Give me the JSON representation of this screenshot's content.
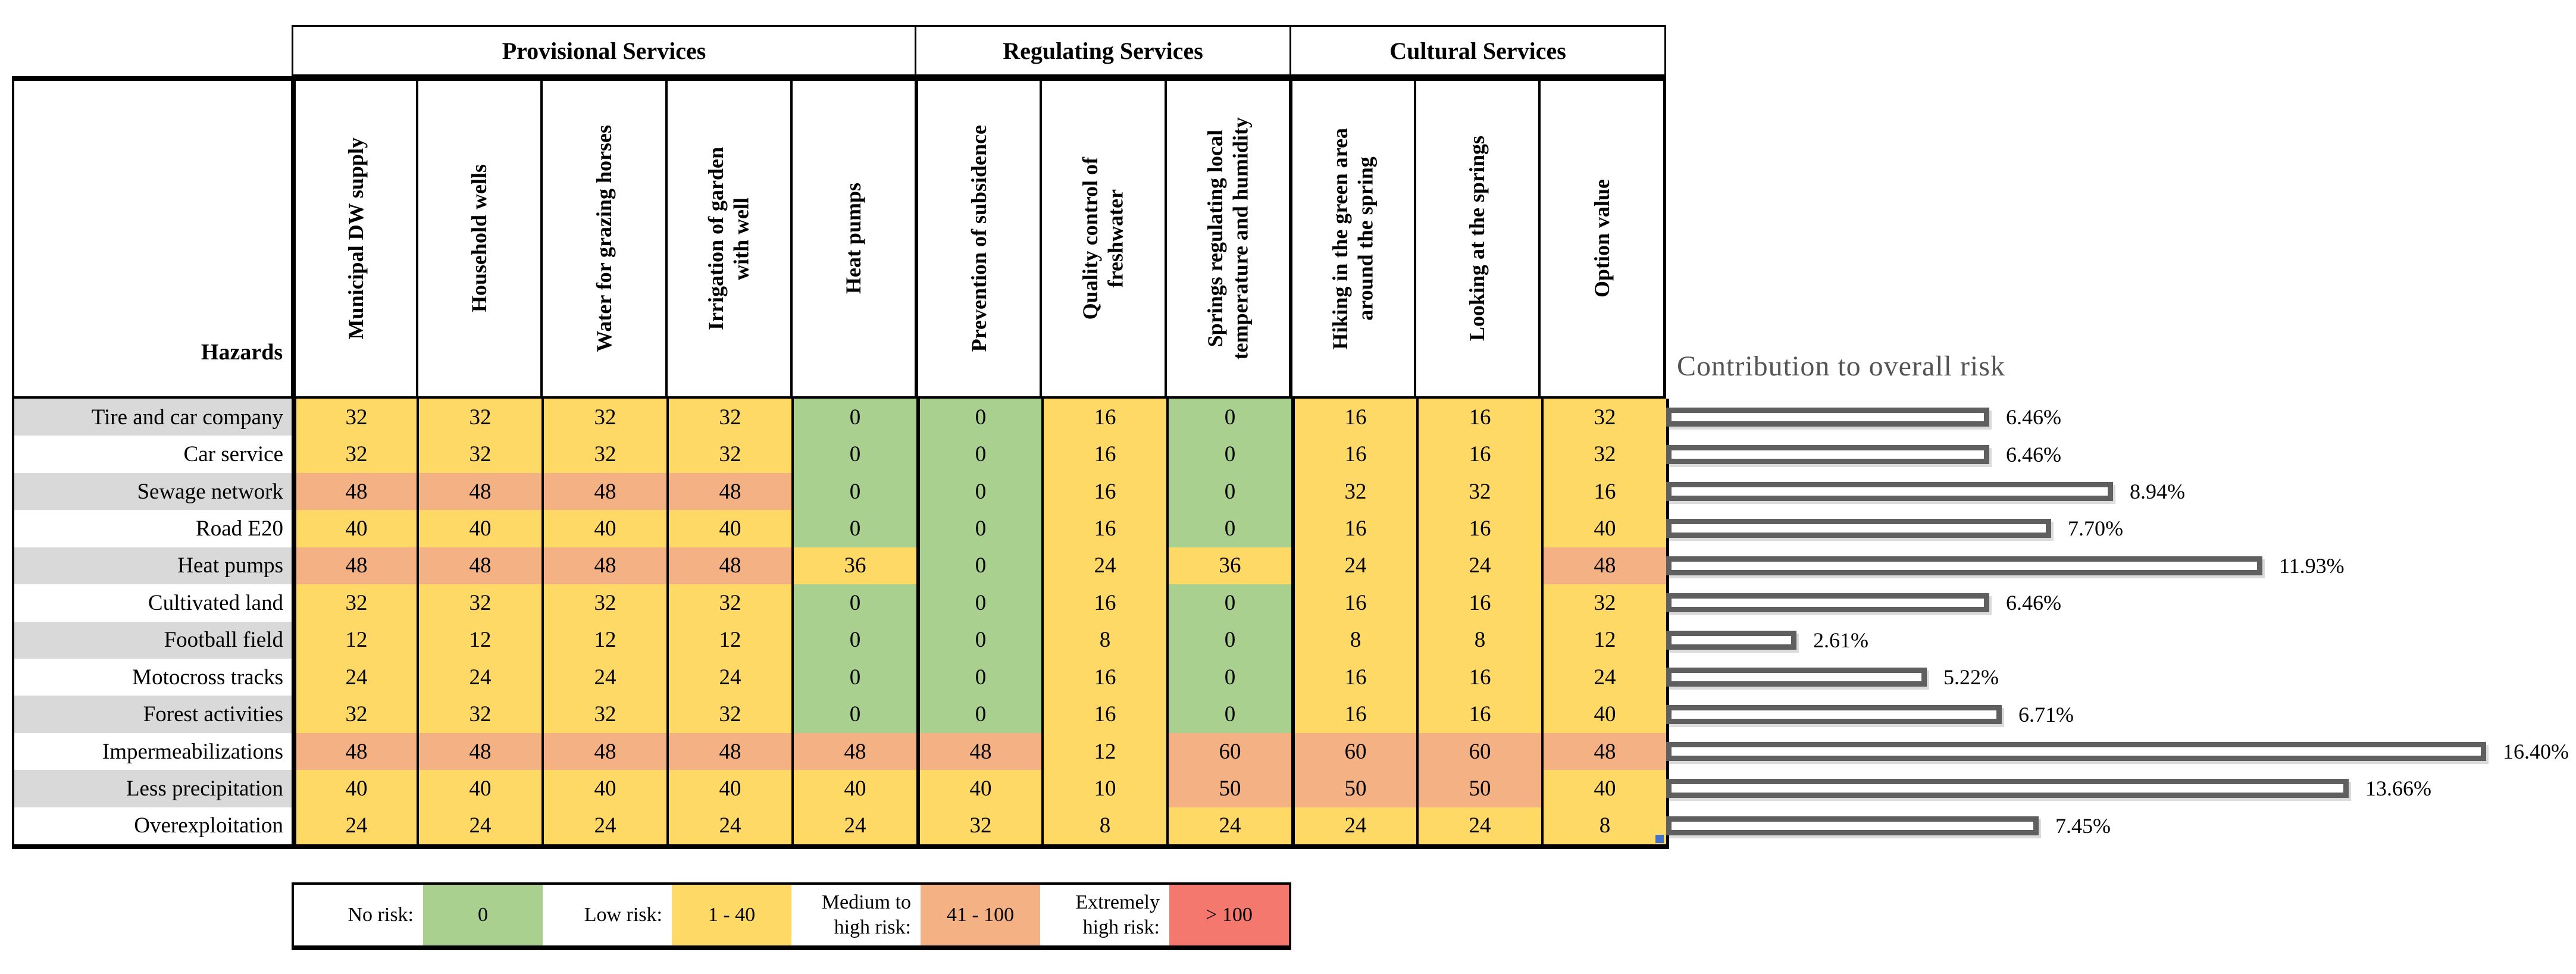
{
  "table": {
    "hazards_label": "Hazards",
    "groups": [
      {
        "label": "Provisional Services",
        "columns": [
          "Municipal DW supply",
          "Household wells",
          "Water for grazing horses",
          "Irrigation of garden\nwith well",
          "Heat pumps"
        ]
      },
      {
        "label": "Regulating Services",
        "columns": [
          "Prevention of subsidence",
          "Quality control of\nfreshwater",
          "Springs regulating local\ntemperature and humidity"
        ]
      },
      {
        "label": "Cultural Services",
        "columns": [
          "Hiking in the green area\naround the spring",
          "Looking at the springs",
          "Option value"
        ]
      }
    ],
    "rows": [
      {
        "hazard": "Tire and car company",
        "values": [
          32,
          32,
          32,
          32,
          0,
          0,
          16,
          0,
          16,
          16,
          32
        ]
      },
      {
        "hazard": "Car service",
        "values": [
          32,
          32,
          32,
          32,
          0,
          0,
          16,
          0,
          16,
          16,
          32
        ]
      },
      {
        "hazard": "Sewage network",
        "values": [
          48,
          48,
          48,
          48,
          0,
          0,
          16,
          0,
          32,
          32,
          16
        ]
      },
      {
        "hazard": "Road E20",
        "values": [
          40,
          40,
          40,
          40,
          0,
          0,
          16,
          0,
          16,
          16,
          40
        ]
      },
      {
        "hazard": "Heat pumps",
        "values": [
          48,
          48,
          48,
          48,
          36,
          0,
          24,
          36,
          24,
          24,
          48
        ]
      },
      {
        "hazard": "Cultivated land",
        "values": [
          32,
          32,
          32,
          32,
          0,
          0,
          16,
          0,
          16,
          16,
          32
        ]
      },
      {
        "hazard": "Football field",
        "values": [
          12,
          12,
          12,
          12,
          0,
          0,
          8,
          0,
          8,
          8,
          12
        ]
      },
      {
        "hazard": "Motocross tracks",
        "values": [
          24,
          24,
          24,
          24,
          0,
          0,
          16,
          0,
          16,
          16,
          24
        ]
      },
      {
        "hazard": "Forest activities",
        "values": [
          32,
          32,
          32,
          32,
          0,
          0,
          16,
          0,
          16,
          16,
          40
        ]
      },
      {
        "hazard": "Impermeabilizations",
        "values": [
          48,
          48,
          48,
          48,
          48,
          48,
          12,
          60,
          60,
          60,
          48
        ]
      },
      {
        "hazard": "Less precipitation",
        "values": [
          40,
          40,
          40,
          40,
          40,
          40,
          10,
          50,
          50,
          50,
          40
        ]
      },
      {
        "hazard": "Overexploitation",
        "values": [
          24,
          24,
          24,
          24,
          24,
          32,
          8,
          24,
          24,
          24,
          8
        ]
      }
    ]
  },
  "legend": {
    "items": [
      {
        "label": "No risk:",
        "range": "0",
        "color": "#A9D08E"
      },
      {
        "label": "Low risk:",
        "range": "1 - 40",
        "color": "#FFD966"
      },
      {
        "label": "Medium to\nhigh risk:",
        "range": "41 - 100",
        "color": "#F4B183"
      },
      {
        "label": "Extremely\nhigh risk:",
        "range": "> 100",
        "color": "#F4786E"
      }
    ]
  },
  "chart": {
    "title": "Contribution to overall risk",
    "values": [
      6.46,
      6.46,
      8.94,
      7.7,
      11.93,
      6.46,
      2.61,
      5.22,
      6.71,
      16.4,
      13.66,
      7.45
    ],
    "value_labels": [
      "6.46%",
      "6.46%",
      "8.94%",
      "7.70%",
      "11.93%",
      "6.46%",
      "2.61%",
      "5.22%",
      "6.71%",
      "16.40%",
      "13.66%",
      "7.45%"
    ]
  },
  "colors": {
    "no_risk": "#A9D08E",
    "low_risk": "#FFD966",
    "medium_high_risk": "#F4B183",
    "extremely_high_risk": "#F4786E",
    "row_label_stripe": "#D9D9D9",
    "bar_outline": "#5F5F5F",
    "chart_title": "#545454"
  },
  "chart_data": [
    {
      "type": "heatmap",
      "rows": [
        "Tire and car company",
        "Car service",
        "Sewage network",
        "Road E20",
        "Heat pumps",
        "Cultivated land",
        "Football field",
        "Motocross tracks",
        "Forest activities",
        "Impermeabilizations",
        "Less precipitation",
        "Overexploitation"
      ],
      "columns": [
        "Municipal DW supply",
        "Household wells",
        "Water for grazing horses",
        "Irrigation of garden with well",
        "Heat pumps",
        "Prevention of subsidence",
        "Quality control of freshwater",
        "Springs regulating local temperature and humidity",
        "Hiking in the green area around the spring",
        "Looking at the springs",
        "Option value"
      ],
      "column_groups": [
        {
          "label": "Provisional Services",
          "span": 5
        },
        {
          "label": "Regulating Services",
          "span": 3
        },
        {
          "label": "Cultural Services",
          "span": 3
        }
      ],
      "values": [
        [
          32,
          32,
          32,
          32,
          0,
          0,
          16,
          0,
          16,
          16,
          32
        ],
        [
          32,
          32,
          32,
          32,
          0,
          0,
          16,
          0,
          16,
          16,
          32
        ],
        [
          48,
          48,
          48,
          48,
          0,
          0,
          16,
          0,
          32,
          32,
          16
        ],
        [
          40,
          40,
          40,
          40,
          0,
          0,
          16,
          0,
          16,
          16,
          40
        ],
        [
          48,
          48,
          48,
          48,
          36,
          0,
          24,
          36,
          24,
          24,
          48
        ],
        [
          32,
          32,
          32,
          32,
          0,
          0,
          16,
          0,
          16,
          16,
          32
        ],
        [
          12,
          12,
          12,
          12,
          0,
          0,
          8,
          0,
          8,
          8,
          12
        ],
        [
          24,
          24,
          24,
          24,
          0,
          0,
          16,
          0,
          16,
          16,
          24
        ],
        [
          32,
          32,
          32,
          32,
          0,
          0,
          16,
          0,
          16,
          16,
          40
        ],
        [
          48,
          48,
          48,
          48,
          48,
          48,
          12,
          60,
          60,
          60,
          48
        ],
        [
          40,
          40,
          40,
          40,
          40,
          40,
          10,
          50,
          50,
          50,
          40
        ],
        [
          24,
          24,
          24,
          24,
          24,
          32,
          8,
          24,
          24,
          24,
          8
        ]
      ],
      "color_scale": [
        {
          "label": "No risk",
          "range": "0",
          "color": "#A9D08E"
        },
        {
          "label": "Low risk",
          "range": "1 - 40",
          "color": "#FFD966"
        },
        {
          "label": "Medium to high risk",
          "range": "41 - 100",
          "color": "#F4B183"
        },
        {
          "label": "Extremely high risk",
          "range": "> 100",
          "color": "#F4786E"
        }
      ]
    },
    {
      "type": "bar",
      "orientation": "horizontal",
      "title": "Contribution to overall risk",
      "categories": [
        "Tire and car company",
        "Car service",
        "Sewage network",
        "Road E20",
        "Heat pumps",
        "Cultivated land",
        "Football field",
        "Motocross tracks",
        "Forest activities",
        "Impermeabilizations",
        "Less precipitation",
        "Overexploitation"
      ],
      "values": [
        6.46,
        6.46,
        8.94,
        7.7,
        11.93,
        6.46,
        2.61,
        5.22,
        6.71,
        16.4,
        13.66,
        7.45
      ],
      "value_labels": [
        "6.46%",
        "6.46%",
        "8.94%",
        "7.70%",
        "11.93%",
        "6.46%",
        "2.61%",
        "5.22%",
        "6.71%",
        "16.40%",
        "13.66%",
        "7.45%"
      ],
      "xlim": [
        0,
        17
      ],
      "grid": false,
      "legend": "none",
      "bar_style": "hollow-gray-outline"
    }
  ]
}
